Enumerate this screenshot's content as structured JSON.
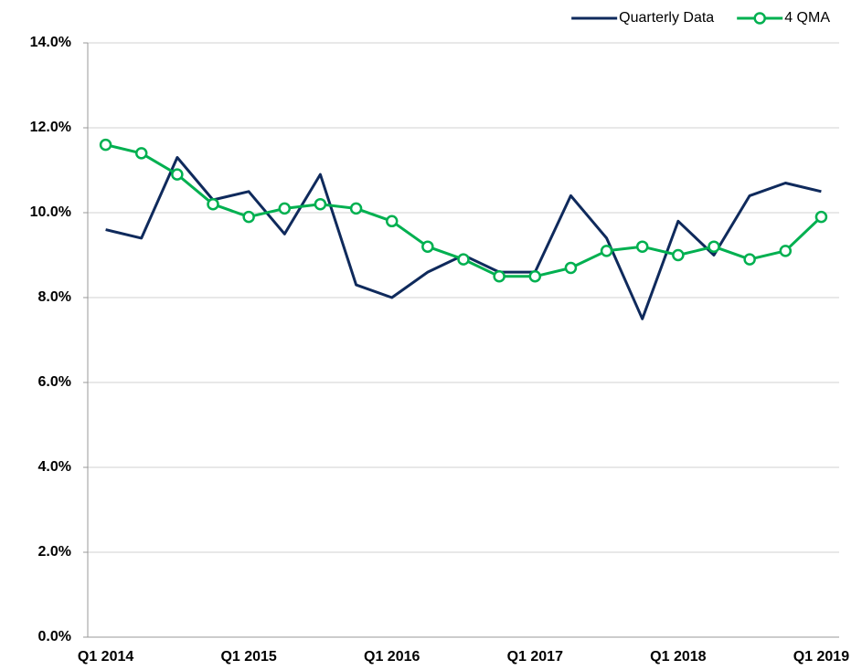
{
  "chart_data": {
    "type": "line",
    "categories": [
      "Q1 2014",
      null,
      null,
      null,
      "Q1 2015",
      null,
      null,
      null,
      "Q1 2016",
      null,
      null,
      null,
      "Q1 2017",
      null,
      null,
      null,
      "Q1 2018",
      null,
      null,
      null,
      "Q1 2019"
    ],
    "series": [
      {
        "name": "Quarterly Data",
        "color": "#0f2a5c",
        "marker": false,
        "values": [
          9.6,
          9.4,
          11.3,
          10.3,
          10.5,
          9.5,
          10.9,
          8.3,
          8.0,
          8.6,
          9.0,
          8.6,
          8.6,
          10.4,
          9.4,
          7.5,
          9.8,
          9.0,
          10.4,
          10.7,
          10.5
        ]
      },
      {
        "name": "4 QMA",
        "color": "#00b050",
        "marker": true,
        "values": [
          11.6,
          11.4,
          10.9,
          10.2,
          9.9,
          10.1,
          10.2,
          10.1,
          9.8,
          9.2,
          8.9,
          8.5,
          8.5,
          8.7,
          9.1,
          9.2,
          9.0,
          9.2,
          8.9,
          9.1,
          9.9
        ]
      }
    ],
    "ylim": [
      0,
      14
    ],
    "yticks": [
      {
        "value": 0,
        "label": "0.0%"
      },
      {
        "value": 2,
        "label": "2.0%"
      },
      {
        "value": 4,
        "label": "4.0%"
      },
      {
        "value": 6,
        "label": "6.0%"
      },
      {
        "value": 8,
        "label": "8.0%"
      },
      {
        "value": 10,
        "label": "10.0%"
      },
      {
        "value": 12,
        "label": "12.0%"
      },
      {
        "value": 14,
        "label": "14.0%"
      }
    ],
    "grid": true,
    "legend": "top-right"
  }
}
